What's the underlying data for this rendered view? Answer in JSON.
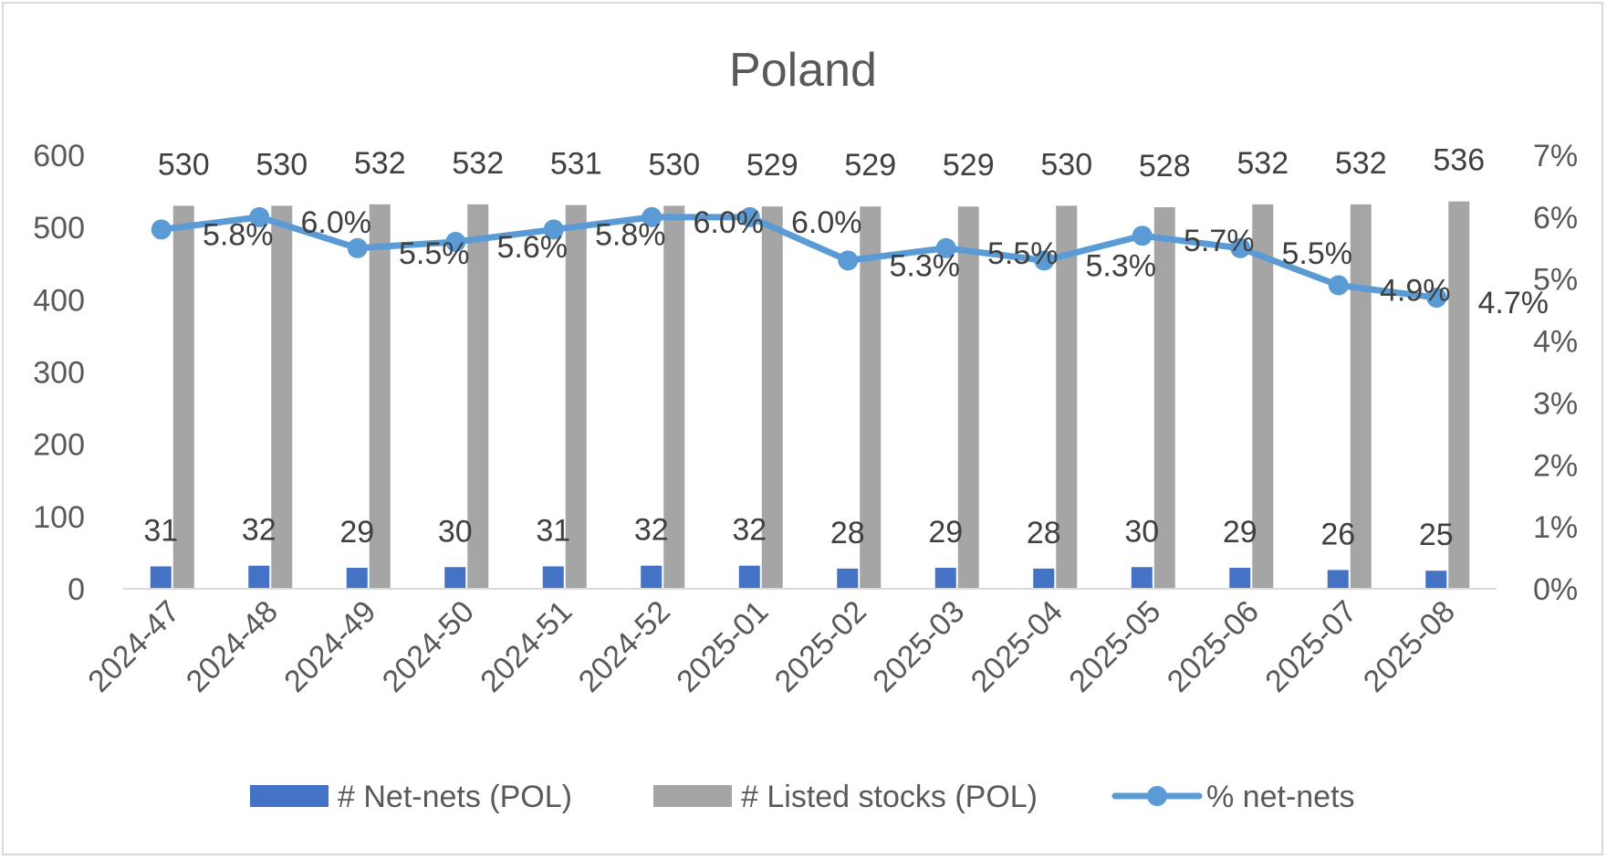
{
  "chart_data": {
    "type": "bar",
    "title": "Poland",
    "categories": [
      "2024-47",
      "2024-48",
      "2024-49",
      "2024-50",
      "2024-51",
      "2024-52",
      "2025-01",
      "2025-02",
      "2025-03",
      "2025-04",
      "2025-05",
      "2025-06",
      "2025-07",
      "2025-08"
    ],
    "series": [
      {
        "name": "# Net-nets (POL)",
        "type": "bar",
        "axis": "left",
        "color": "#4472c4",
        "values": [
          31,
          32,
          29,
          30,
          31,
          32,
          32,
          28,
          29,
          28,
          30,
          29,
          26,
          25
        ]
      },
      {
        "name": "# Listed stocks (POL)",
        "type": "bar",
        "axis": "left",
        "color": "#a5a5a5",
        "values": [
          530,
          530,
          532,
          532,
          531,
          530,
          529,
          529,
          529,
          530,
          528,
          532,
          532,
          536
        ]
      },
      {
        "name": "% net-nets",
        "type": "line",
        "axis": "right",
        "color": "#5b9bd5",
        "values": [
          5.8,
          6.0,
          5.5,
          5.6,
          5.8,
          6.0,
          6.0,
          5.3,
          5.5,
          5.3,
          5.7,
          5.5,
          4.9,
          4.7
        ],
        "labels": [
          "5.8%",
          "6.0%",
          "5.5%",
          "5.6%",
          "5.8%",
          "6.0%",
          "6.0%",
          "5.3%",
          "5.5%",
          "5.3%",
          "5.7%",
          "5.5%",
          "4.9%",
          "4.7%"
        ]
      }
    ],
    "ylim": [
      0,
      600
    ],
    "yticks": [
      "0",
      "100",
      "200",
      "300",
      "400",
      "500",
      "600"
    ],
    "y2lim": [
      0,
      7
    ],
    "y2ticks": [
      "0%",
      "1%",
      "2%",
      "3%",
      "4%",
      "5%",
      "6%",
      "7%"
    ],
    "legend_position": "bottom",
    "grid": false
  }
}
